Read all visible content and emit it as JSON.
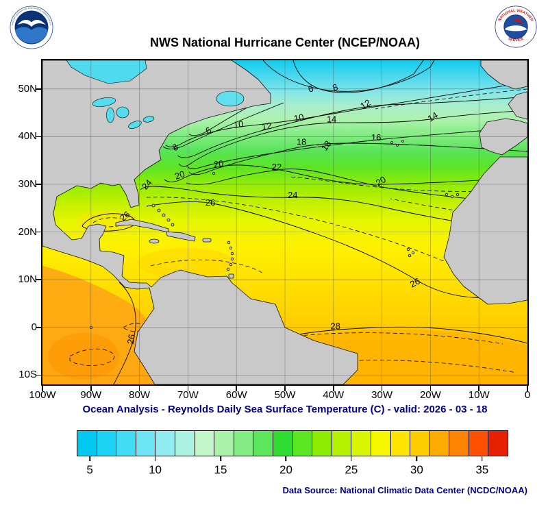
{
  "header": {
    "title": "NWS National Hurricane Center (NCEP/NOAA)"
  },
  "logos": {
    "noaa": {
      "ring_top": "NATIONAL OCEANIC AND ATMOSPHERIC ADMINISTRATION",
      "ring_bottom": "U.S. DEPARTMENT OF COMMERCE"
    },
    "nws": {
      "ring_top": "NATIONAL WEATHER",
      "ring_bottom": "SERVICE"
    }
  },
  "map": {
    "caption": "Ocean Analysis - Reynolds Daily Sea Surface Temperature (C) - valid: 2026 - 03 - 18"
  },
  "axes": {
    "lat_ticks": [
      {
        "label": "50N",
        "lat": 50
      },
      {
        "label": "40N",
        "lat": 40
      },
      {
        "label": "30N",
        "lat": 30
      },
      {
        "label": "20N",
        "lat": 20
      },
      {
        "label": "10N",
        "lat": 10
      },
      {
        "label": "0",
        "lat": 0
      },
      {
        "label": "10S",
        "lat": -10
      }
    ],
    "lon_ticks": [
      {
        "label": "100W",
        "lon": 100
      },
      {
        "label": "90W",
        "lon": 90
      },
      {
        "label": "80W",
        "lon": 80
      },
      {
        "label": "70W",
        "lon": 70
      },
      {
        "label": "60W",
        "lon": 60
      },
      {
        "label": "50W",
        "lon": 50
      },
      {
        "label": "40W",
        "lon": 40
      },
      {
        "label": "30W",
        "lon": 30
      },
      {
        "label": "20W",
        "lon": 20
      },
      {
        "label": "10W",
        "lon": 10
      },
      {
        "label": "0",
        "lon": 0
      }
    ]
  },
  "colorbar": {
    "min": 4,
    "max": 37,
    "colors": [
      "#00c8f0",
      "#1cd2f2",
      "#44dcf4",
      "#6ce4f4",
      "#90ecf0",
      "#acf2e0",
      "#c2f6c8",
      "#aaf2aa",
      "#84ec84",
      "#5ce65c",
      "#30dc30",
      "#5ae620",
      "#8cec00",
      "#b4f200",
      "#d8f600",
      "#f6f800",
      "#ffe600",
      "#ffcc00",
      "#ffac00",
      "#ff8400",
      "#ff5000",
      "#e62000"
    ],
    "ticks": [
      {
        "label": "5",
        "value": 5
      },
      {
        "label": "10",
        "value": 10
      },
      {
        "label": "15",
        "value": 15
      },
      {
        "label": "20",
        "value": 20
      },
      {
        "label": "25",
        "value": 25
      },
      {
        "label": "30",
        "value": 30
      },
      {
        "label": "35",
        "value": 35
      }
    ]
  },
  "chart_data": {
    "type": "heatmap",
    "units": "C",
    "valid_date": "2026 - 03 - 18",
    "lon_ticks_deg_w": [
      100,
      90,
      80,
      70,
      60,
      50,
      40,
      30,
      20,
      10,
      0
    ],
    "lat_ticks_deg_n": [
      50,
      40,
      30,
      20,
      10,
      0,
      -10
    ],
    "contour_levels_c": [
      6,
      8,
      10,
      12,
      14,
      16,
      18,
      20,
      22,
      24,
      26,
      28
    ],
    "colorbar_tick_values_c": [
      5,
      10,
      15,
      20,
      25,
      30,
      35
    ],
    "contour_labels": [
      {
        "v": "6",
        "lon": 44.5,
        "lat": 50.0,
        "rot": -18
      },
      {
        "v": "8",
        "lon": 39.4,
        "lat": 50.3,
        "rot": -22
      },
      {
        "v": "10",
        "lon": 59.5,
        "lat": 42.5,
        "rot": -8
      },
      {
        "v": "12",
        "lon": 53.7,
        "lat": 42.1,
        "rot": -8
      },
      {
        "v": "10",
        "lon": 47.0,
        "lat": 43.9,
        "rot": -12
      },
      {
        "v": "12",
        "lon": 33.1,
        "lat": 46.8,
        "rot": -30
      },
      {
        "v": "14",
        "lon": 40.4,
        "lat": 43.6,
        "rot": 0
      },
      {
        "v": "14",
        "lon": 19.2,
        "lat": 44.2,
        "rot": -32
      },
      {
        "v": "16",
        "lon": 31.2,
        "lat": 39.8,
        "rot": 0
      },
      {
        "v": "18",
        "lon": 46.6,
        "lat": 38.8,
        "rot": 0
      },
      {
        "v": "18",
        "lon": 41.0,
        "lat": 38.3,
        "rot": -55
      },
      {
        "v": "6",
        "lon": 65.5,
        "lat": 41.3,
        "rot": -28
      },
      {
        "v": "8",
        "lon": 72.3,
        "lat": 37.8,
        "rot": -32
      },
      {
        "v": "20",
        "lon": 63.6,
        "lat": 34.2,
        "rot": -8
      },
      {
        "v": "20",
        "lon": 71.5,
        "lat": 31.9,
        "rot": -18
      },
      {
        "v": "22",
        "lon": 51.7,
        "lat": 33.6,
        "rot": 0
      },
      {
        "v": "24",
        "lon": 78.0,
        "lat": 30.1,
        "rot": -48
      },
      {
        "v": "20",
        "lon": 29.9,
        "lat": 30.7,
        "rot": -32
      },
      {
        "v": "24",
        "lon": 48.4,
        "lat": 27.7,
        "rot": 0
      },
      {
        "v": "26",
        "lon": 65.4,
        "lat": 26.1,
        "rot": 0
      },
      {
        "v": "26",
        "lon": 82.6,
        "lat": 23.4,
        "rot": -38
      },
      {
        "v": "26",
        "lon": 22.9,
        "lat": 9.4,
        "rot": -28
      },
      {
        "v": "28",
        "lon": 39.6,
        "lat": 0.2,
        "rot": 0
      },
      {
        "v": "26",
        "lon": 81.1,
        "lat": -2.0,
        "rot": -80
      }
    ]
  },
  "footer": {
    "source": "Data Source: National Climatic Data Center (NCDC/NOAA)"
  }
}
